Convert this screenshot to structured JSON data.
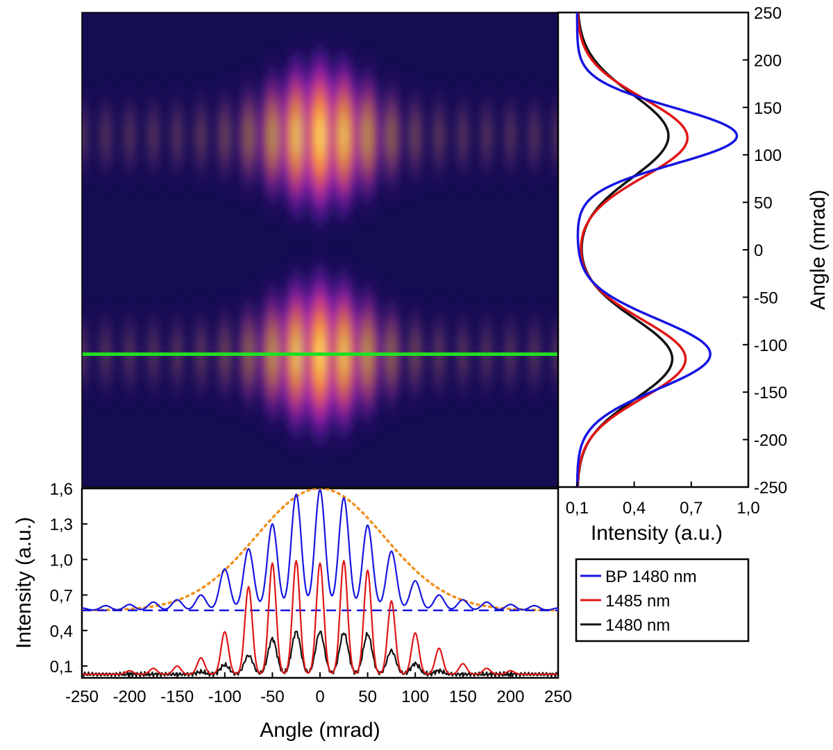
{
  "chart_data": [
    {
      "id": "far_field_image",
      "type": "heatmap",
      "colormap": "fire",
      "x_range": [
        -250,
        250
      ],
      "y_range": [
        -250,
        250
      ],
      "fringe_positions_mrad": [
        -250,
        -225,
        -200,
        -175,
        -150,
        -125,
        -100,
        -75,
        -50,
        -25,
        0,
        25,
        50,
        75,
        100,
        125,
        150,
        175,
        200,
        225,
        250
      ],
      "lobe_centers_mrad": [
        120,
        -110
      ],
      "marker_line": {
        "y": -110,
        "color": "#22dd22"
      }
    },
    {
      "id": "bottom_profile",
      "type": "line",
      "xlabel": "Angle (mrad)",
      "ylabel": "Intensity (a.u.)",
      "xlim": [
        -250,
        250
      ],
      "ylim": [
        0,
        1.6
      ],
      "x_ticks": [
        "-250",
        "-200",
        "-150",
        "-100",
        "-50",
        "0",
        "50",
        "100",
        "150",
        "200",
        "250"
      ],
      "y_ticks": [
        "0,1",
        "0,4",
        "0,7",
        "1,0",
        "1,3",
        "1,6"
      ],
      "series": [
        {
          "name": "BP 1480 nm",
          "color": "#1515e0",
          "offset": 0.57,
          "peaks": [
            [
              -250,
              0.02
            ],
            [
              -225,
              0.04
            ],
            [
              -200,
              0.05
            ],
            [
              -175,
              0.07
            ],
            [
              -150,
              0.09
            ],
            [
              -125,
              0.13
            ],
            [
              -100,
              0.35
            ],
            [
              -75,
              0.52
            ],
            [
              -50,
              0.73
            ],
            [
              -25,
              0.98
            ],
            [
              0,
              1.02
            ],
            [
              25,
              0.95
            ],
            [
              50,
              0.72
            ],
            [
              75,
              0.5
            ],
            [
              100,
              0.25
            ],
            [
              125,
              0.13
            ],
            [
              150,
              0.09
            ],
            [
              175,
              0.07
            ],
            [
              200,
              0.05
            ],
            [
              225,
              0.04
            ],
            [
              250,
              0.02
            ]
          ],
          "width": 7.5
        },
        {
          "name": "1485 nm",
          "color": "#e01515",
          "offset": 0.03,
          "peaks": [
            [
              -200,
              0.03
            ],
            [
              -175,
              0.05
            ],
            [
              -150,
              0.07
            ],
            [
              -125,
              0.14
            ],
            [
              -100,
              0.36
            ],
            [
              -75,
              0.74
            ],
            [
              -50,
              0.94
            ],
            [
              -25,
              0.96
            ],
            [
              0,
              0.94
            ],
            [
              25,
              0.96
            ],
            [
              50,
              0.88
            ],
            [
              75,
              0.62
            ],
            [
              100,
              0.35
            ],
            [
              125,
              0.22
            ],
            [
              150,
              0.09
            ],
            [
              175,
              0.05
            ],
            [
              200,
              0.03
            ]
          ],
          "width": 5.5
        },
        {
          "name": "1480 nm",
          "color": "#111111",
          "offset": 0.03,
          "peaks": [
            [
              -125,
              0.02
            ],
            [
              -100,
              0.08
            ],
            [
              -75,
              0.16
            ],
            [
              -50,
              0.3
            ],
            [
              -25,
              0.36
            ],
            [
              0,
              0.36
            ],
            [
              25,
              0.35
            ],
            [
              50,
              0.34
            ],
            [
              75,
              0.2
            ],
            [
              100,
              0.09
            ],
            [
              125,
              0.03
            ]
          ],
          "width": 6.5
        }
      ],
      "envelope": {
        "color": "#f0901e",
        "style": "dotted",
        "base": 0.57,
        "amplitude": 1.03,
        "width": 95
      },
      "baseline": {
        "color": "#1515e0",
        "style": "dashed",
        "y": 0.57
      }
    },
    {
      "id": "side_profile",
      "type": "line",
      "xlabel": "Intensity (a.u.)",
      "ylabel": "Angle (mrad)",
      "xlim": [
        0,
        1.0
      ],
      "ylim": [
        -250,
        250
      ],
      "x_ticks": [
        "0,1",
        "0,4",
        "0,7",
        "1,0"
      ],
      "y_ticks": [
        "250",
        "200",
        "150",
        "100",
        "50",
        "0",
        "-50",
        "-100",
        "-150",
        "-200",
        "-250"
      ],
      "series": [
        {
          "name": "BP 1480 nm",
          "color": "#1515e0",
          "peaks": [
            [
              120,
              0.94,
              42
            ],
            [
              -110,
              0.8,
              52
            ]
          ],
          "base": 0.1
        },
        {
          "name": "1485 nm",
          "color": "#e01515",
          "peaks": [
            [
              118,
              0.68,
              58
            ],
            [
              -115,
              0.67,
              58
            ]
          ],
          "base": 0.1
        },
        {
          "name": "1480 nm",
          "color": "#111111",
          "peaks": [
            [
              120,
              0.58,
              62
            ],
            [
              -115,
              0.6,
              60
            ]
          ],
          "base": 0.1
        }
      ]
    }
  ],
  "legend": {
    "entries": [
      {
        "label": "BP 1480 nm",
        "color": "#1515e0"
      },
      {
        "label": "1485 nm",
        "color": "#e01515"
      },
      {
        "label": "1480 nm",
        "color": "#111111"
      }
    ]
  }
}
